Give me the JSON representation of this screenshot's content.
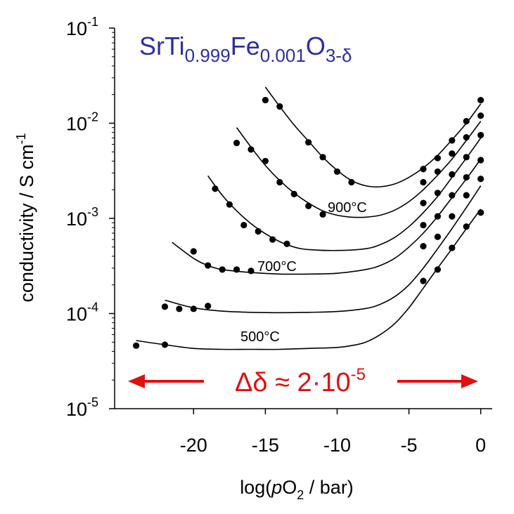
{
  "chart_data": {
    "type": "scatter",
    "title": "",
    "formula": {
      "prefix": "SrTi",
      "sub1": "0.999",
      "mid": "Fe",
      "sub2": "0.001",
      "suffix": "O",
      "sub3": "3-δ",
      "color": "#2e2ea0"
    },
    "xlabel": {
      "pre": "log(",
      "italic": "p",
      "mid": "O",
      "sub": "2",
      "post": " / bar)"
    },
    "ylabel": {
      "main": "conductivity / S cm",
      "sup": "-1"
    },
    "xlim": [
      -25.5,
      0.8
    ],
    "ylim": [
      1e-05,
      0.1
    ],
    "y_scale": "log",
    "x_ticks": [
      {
        "v": -20,
        "label": "-20"
      },
      {
        "v": -15,
        "label": "-15"
      },
      {
        "v": -10,
        "label": "-10"
      },
      {
        "v": -5,
        "label": "-5"
      },
      {
        "v": 0,
        "label": "0"
      }
    ],
    "y_ticks": [
      {
        "v": 0.1,
        "base": "10",
        "exp": "-1"
      },
      {
        "v": 0.01,
        "base": "10",
        "exp": "-2"
      },
      {
        "v": 0.001,
        "base": "10",
        "exp": "-3"
      },
      {
        "v": 0.0001,
        "base": "10",
        "exp": "-4"
      },
      {
        "v": 1e-05,
        "base": "10",
        "exp": "-5"
      }
    ],
    "grid": false,
    "series": [
      {
        "name": "",
        "points": [
          [
            -24,
            4.6e-05
          ],
          [
            -22,
            4.7e-05
          ],
          [
            -4,
            0.00022
          ],
          [
            -3,
            0.00029
          ],
          [
            -2,
            0.00049
          ],
          [
            -1,
            0.00082
          ],
          [
            0,
            0.00115
          ]
        ],
        "fit": [
          [
            -24,
            5.2e-05
          ],
          [
            -22,
            4.7e-05
          ],
          [
            -20,
            4.3e-05
          ],
          [
            -18,
            4.2e-05
          ],
          [
            -16,
            4.2e-05
          ],
          [
            -14,
            4.2e-05
          ],
          [
            -12,
            4.3e-05
          ],
          [
            -10,
            4.4e-05
          ],
          [
            -9,
            4.6e-05
          ],
          [
            -8,
            5e-05
          ],
          [
            -7,
            6e-05
          ],
          [
            -6,
            7.8e-05
          ],
          [
            -5,
            0.000115
          ],
          [
            -4,
            0.000185
          ],
          [
            -3,
            0.0003
          ],
          [
            -2,
            0.00048
          ],
          [
            -1,
            0.00078
          ],
          [
            0,
            0.00125
          ]
        ]
      },
      {
        "name": "",
        "points": [
          [
            -22,
            0.000118
          ],
          [
            -21,
            0.000112
          ],
          [
            -20,
            0.000112
          ],
          [
            -19,
            0.00012
          ],
          [
            -4,
            0.00051
          ],
          [
            -3,
            0.00064
          ],
          [
            -2,
            0.00105
          ],
          [
            -1,
            0.00175
          ],
          [
            0,
            0.0026
          ]
        ],
        "fit": [
          [
            -22,
            0.000138
          ],
          [
            -20,
            0.000115
          ],
          [
            -18,
            0.000106
          ],
          [
            -16,
            0.000103
          ],
          [
            -14,
            0.000102
          ],
          [
            -12,
            0.000103
          ],
          [
            -10,
            0.000105
          ],
          [
            -8,
            0.000113
          ],
          [
            -7,
            0.000125
          ],
          [
            -6,
            0.00015
          ],
          [
            -5,
            0.0002
          ],
          [
            -4,
            0.0003
          ],
          [
            -3,
            0.00048
          ],
          [
            -2,
            0.00078
          ],
          [
            -1,
            0.0013
          ],
          [
            0,
            0.0022
          ]
        ]
      },
      {
        "name": "",
        "points": [
          [
            -20,
            0.00045
          ],
          [
            -19,
            0.00032
          ],
          [
            -18,
            0.00029
          ],
          [
            -17,
            0.00029
          ],
          [
            -16,
            0.00028
          ],
          [
            -4,
            0.00085
          ],
          [
            -3,
            0.00105
          ],
          [
            -2,
            0.00175
          ],
          [
            -1,
            0.0027
          ],
          [
            0,
            0.0041
          ]
        ],
        "fit": [
          [
            -21.5,
            0.00056
          ],
          [
            -20,
            0.00038
          ],
          [
            -19,
            0.00032
          ],
          [
            -18,
            0.00029
          ],
          [
            -16,
            0.00027
          ],
          [
            -14,
            0.00026
          ],
          [
            -12,
            0.00026
          ],
          [
            -10,
            0.000265
          ],
          [
            -8,
            0.00029
          ],
          [
            -7,
            0.00032
          ],
          [
            -6,
            0.00038
          ],
          [
            -5,
            0.0005
          ],
          [
            -4,
            0.0007
          ],
          [
            -3,
            0.00105
          ],
          [
            -2,
            0.00165
          ],
          [
            -1,
            0.0026
          ],
          [
            0,
            0.0042
          ]
        ]
      },
      {
        "name": "",
        "points": [
          [
            -18.5,
            0.00205
          ],
          [
            -17.5,
            0.0014
          ],
          [
            -16.5,
            0.00085
          ],
          [
            -15.5,
            0.00073
          ],
          [
            -14.5,
            0.0006
          ],
          [
            -13.5,
            0.00054
          ],
          [
            -4,
            0.00145
          ],
          [
            -3,
            0.00185
          ],
          [
            -2,
            0.0029
          ],
          [
            -1,
            0.0044
          ],
          [
            0,
            0.0075
          ]
        ],
        "fit": [
          [
            -19,
            0.0028
          ],
          [
            -18,
            0.00175
          ],
          [
            -17,
            0.0012
          ],
          [
            -16,
            0.00088
          ],
          [
            -15,
            0.00069
          ],
          [
            -14,
            0.00057
          ],
          [
            -13,
            0.0005
          ],
          [
            -12,
            0.00047
          ],
          [
            -10,
            0.00046
          ],
          [
            -8,
            0.00048
          ],
          [
            -7,
            0.00053
          ],
          [
            -6,
            0.00063
          ],
          [
            -5,
            0.00082
          ],
          [
            -4,
            0.00115
          ],
          [
            -3,
            0.0017
          ],
          [
            -2,
            0.0027
          ],
          [
            -1,
            0.0043
          ],
          [
            0,
            0.007
          ]
        ]
      },
      {
        "name": "",
        "points": [
          [
            -17,
            0.0062
          ],
          [
            -16,
            0.0053
          ],
          [
            -15,
            0.004
          ],
          [
            -14,
            0.0024
          ],
          [
            -13,
            0.0018
          ],
          [
            -12,
            0.00135
          ],
          [
            -11,
            0.0011
          ],
          [
            -4,
            0.0024
          ],
          [
            -3,
            0.0031
          ],
          [
            -2,
            0.0048
          ],
          [
            -1,
            0.0071
          ],
          [
            0,
            0.012
          ]
        ],
        "fit": [
          [
            -17,
            0.009
          ],
          [
            -16,
            0.0056
          ],
          [
            -15,
            0.0036
          ],
          [
            -14,
            0.0025
          ],
          [
            -13,
            0.00185
          ],
          [
            -12,
            0.00145
          ],
          [
            -11,
            0.0012
          ],
          [
            -10,
            0.00108
          ],
          [
            -9,
            0.00103
          ],
          [
            -8,
            0.00103
          ],
          [
            -7,
            0.00108
          ],
          [
            -6,
            0.00122
          ],
          [
            -5,
            0.0015
          ],
          [
            -4,
            0.002
          ],
          [
            -3,
            0.00285
          ],
          [
            -2,
            0.0042
          ],
          [
            -1,
            0.0066
          ],
          [
            0,
            0.0105
          ]
        ]
      },
      {
        "name": "",
        "points": [
          [
            -15,
            0.0175
          ],
          [
            -14,
            0.015
          ],
          [
            -12,
            0.0063
          ],
          [
            -11,
            0.0044
          ],
          [
            -10,
            0.0031
          ],
          [
            -9,
            0.0024
          ],
          [
            -4,
            0.0033
          ],
          [
            -3,
            0.0043
          ],
          [
            -2,
            0.0066
          ],
          [
            -1,
            0.0105
          ],
          [
            0,
            0.0175
          ]
        ],
        "fit": [
          [
            -15,
            0.024
          ],
          [
            -14,
            0.015
          ],
          [
            -13,
            0.0096
          ],
          [
            -12,
            0.0065
          ],
          [
            -11,
            0.0044
          ],
          [
            -10,
            0.0032
          ],
          [
            -9,
            0.0025
          ],
          [
            -8,
            0.0022
          ],
          [
            -7,
            0.00215
          ],
          [
            -6,
            0.0023
          ],
          [
            -5,
            0.0027
          ],
          [
            -4,
            0.0034
          ],
          [
            -3,
            0.0046
          ],
          [
            -2,
            0.0067
          ],
          [
            -1,
            0.01
          ],
          [
            0,
            0.016
          ]
        ]
      }
    ],
    "annotations": {
      "label_900": "900°C",
      "label_700": "700°C",
      "label_500": "500°C",
      "arrow": {
        "pre": "Δδ ≈ 2·10",
        "sup": "-5",
        "color": "#e01010"
      }
    }
  }
}
